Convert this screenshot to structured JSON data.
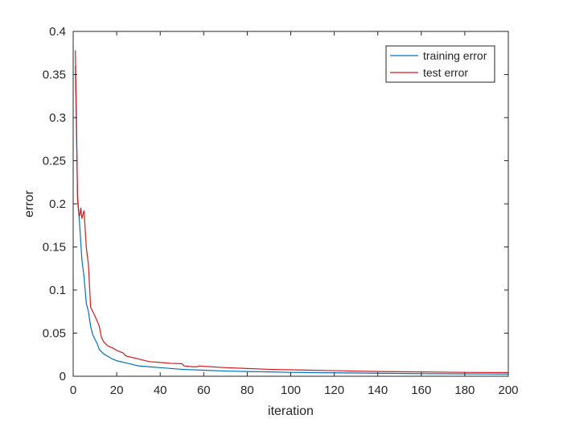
{
  "chart_data": {
    "type": "line",
    "title": "",
    "xlabel": "iteration",
    "ylabel": "error",
    "xlim": [
      0,
      200
    ],
    "ylim": [
      0,
      0.4
    ],
    "x_ticks": [
      0,
      20,
      40,
      60,
      80,
      100,
      120,
      140,
      160,
      180,
      200
    ],
    "x_tick_labels": [
      "0",
      "20",
      "40",
      "60",
      "80",
      "100",
      "120",
      "140",
      "160",
      "180",
      "200"
    ],
    "y_ticks": [
      0,
      0.05,
      0.1,
      0.15,
      0.2,
      0.25,
      0.3,
      0.35,
      0.4
    ],
    "y_tick_labels": [
      "0",
      "0.05",
      "0.1",
      "0.15",
      "0.2",
      "0.25",
      "0.3",
      "0.35",
      "0.4"
    ],
    "grid": false,
    "legend_position": "top-right",
    "series": [
      {
        "name": "training error",
        "color": "#0072BD",
        "x": [
          1,
          2,
          3,
          4,
          5,
          6,
          7,
          8,
          9,
          10,
          11,
          12,
          14,
          16,
          18,
          20,
          25,
          30,
          35,
          40,
          50,
          60,
          70,
          80,
          90,
          100,
          120,
          140,
          160,
          180,
          200
        ],
        "y": [
          0.36,
          0.21,
          0.175,
          0.135,
          0.115,
          0.085,
          0.075,
          0.058,
          0.048,
          0.043,
          0.038,
          0.031,
          0.026,
          0.023,
          0.02,
          0.018,
          0.015,
          0.012,
          0.011,
          0.01,
          0.008,
          0.007,
          0.006,
          0.0055,
          0.005,
          0.0045,
          0.004,
          0.0035,
          0.003,
          0.0028,
          0.0025
        ]
      },
      {
        "name": "test error",
        "color": "#D7191C",
        "x": [
          1,
          1.5,
          2,
          2.5,
          3,
          3.5,
          4,
          4.5,
          5,
          6,
          7,
          8,
          10,
          12,
          13,
          14,
          16,
          18,
          20,
          22,
          23,
          24,
          25,
          30,
          35,
          40,
          45,
          50,
          51,
          55,
          57,
          58,
          60,
          70,
          80,
          90,
          100,
          120,
          140,
          160,
          180,
          200
        ],
        "y": [
          0.378,
          0.3,
          0.205,
          0.19,
          0.186,
          0.195,
          0.183,
          0.188,
          0.192,
          0.15,
          0.13,
          0.08,
          0.07,
          0.058,
          0.045,
          0.04,
          0.035,
          0.033,
          0.03,
          0.028,
          0.027,
          0.024,
          0.023,
          0.02,
          0.017,
          0.016,
          0.015,
          0.0145,
          0.012,
          0.011,
          0.011,
          0.012,
          0.0115,
          0.01,
          0.009,
          0.008,
          0.0075,
          0.0065,
          0.0055,
          0.005,
          0.0045,
          0.0042
        ]
      }
    ]
  }
}
